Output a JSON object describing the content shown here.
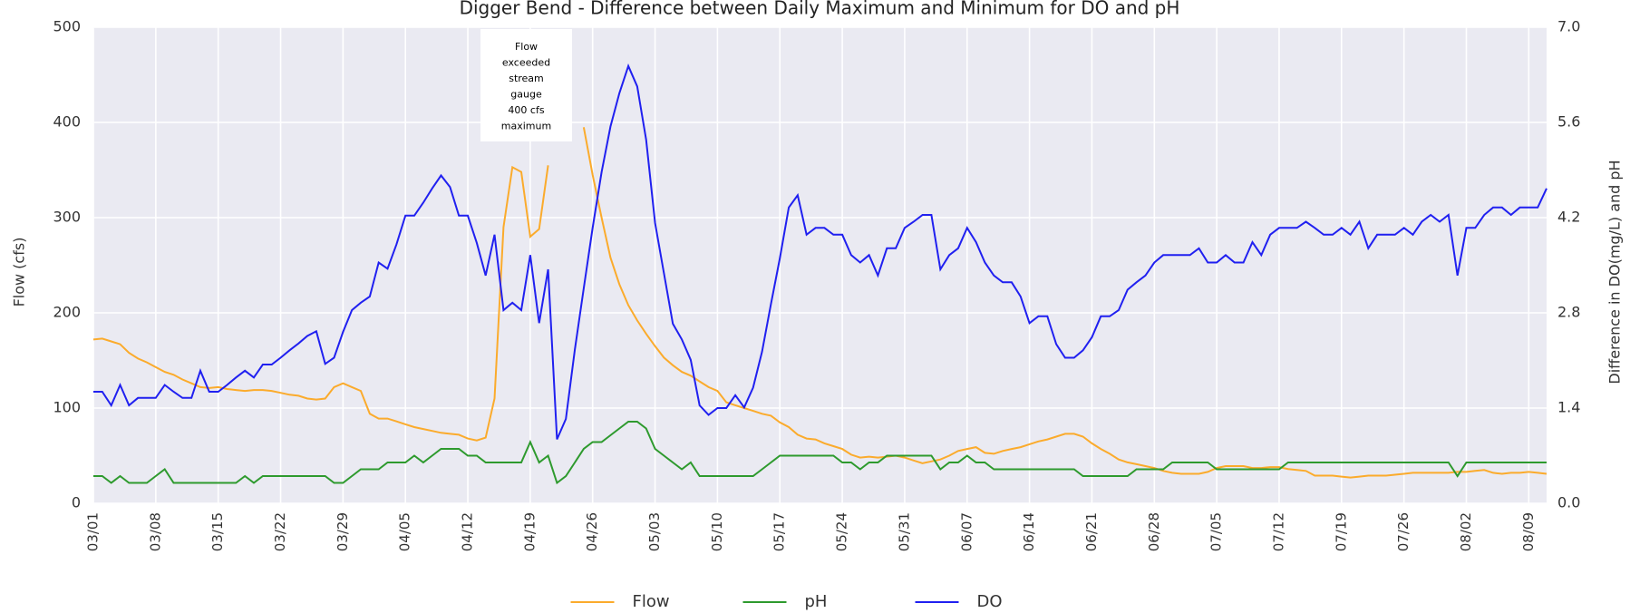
{
  "chart_data": {
    "type": "line",
    "title": "Digger Bend - Difference between Daily Maximum and Minimum for DO and pH",
    "ylabel": "Flow (cfs)",
    "y2label": "Difference in DO(mg/L) and pH",
    "annotation": [
      "Flow",
      "exceeded",
      "stream",
      "gauge",
      "400 cfs",
      "maximum"
    ],
    "categories": [
      "03/01",
      null,
      null,
      null,
      null,
      null,
      null,
      "03/08",
      null,
      null,
      null,
      null,
      null,
      null,
      "03/15",
      null,
      null,
      null,
      null,
      null,
      null,
      "03/22",
      null,
      null,
      null,
      null,
      null,
      null,
      "03/29",
      null,
      null,
      null,
      null,
      null,
      null,
      "04/05",
      null,
      null,
      null,
      null,
      null,
      null,
      "04/12",
      null,
      null,
      null,
      null,
      null,
      null,
      "04/19",
      null,
      null,
      null,
      null,
      null,
      null,
      "04/26",
      null,
      null,
      null,
      null,
      null,
      null,
      "05/03",
      null,
      null,
      null,
      null,
      null,
      null,
      "05/10",
      null,
      null,
      null,
      null,
      null,
      null,
      "05/17",
      null,
      null,
      null,
      null,
      null,
      null,
      "05/24",
      null,
      null,
      null,
      null,
      null,
      null,
      "05/31",
      null,
      null,
      null,
      null,
      null,
      null,
      "06/07",
      null,
      null,
      null,
      null,
      null,
      null,
      "06/14",
      null,
      null,
      null,
      null,
      null,
      null,
      "06/21",
      null,
      null,
      null,
      null,
      null,
      null,
      "06/28",
      null,
      null,
      null,
      null,
      null,
      null,
      "07/05",
      null,
      null,
      null,
      null,
      null,
      null,
      "07/12",
      null,
      null,
      null,
      null,
      null,
      null,
      "07/19",
      null,
      null,
      null,
      null,
      null,
      null,
      "07/26",
      null,
      null,
      null,
      null,
      null,
      null,
      "08/02",
      null,
      null,
      null,
      null,
      null,
      null,
      "08/09",
      null,
      null
    ],
    "series": [
      {
        "name": "Flow",
        "color": "#fbab2c",
        "axis": "y",
        "values": [
          172,
          173,
          170,
          167,
          158,
          152,
          148,
          143,
          138,
          135,
          130,
          126,
          122,
          121,
          122,
          120,
          119,
          118,
          119,
          119,
          118,
          116,
          114,
          113,
          110,
          109,
          110,
          122,
          126,
          122,
          118,
          94,
          89,
          89,
          86,
          83,
          80,
          78,
          76,
          74,
          73,
          72,
          68,
          66,
          69,
          110,
          290,
          353,
          348,
          280,
          288,
          355,
          null,
          null,
          null,
          395,
          345,
          300,
          258,
          230,
          208,
          192,
          178,
          165,
          153,
          145,
          138,
          134,
          128,
          122,
          118,
          106,
          103,
          100,
          97,
          94,
          92,
          85,
          80,
          72,
          68,
          67,
          63,
          60,
          57,
          51,
          48,
          49,
          48,
          49,
          50,
          48,
          45,
          42,
          44,
          46,
          50,
          55,
          57,
          59,
          53,
          52,
          55,
          57,
          59,
          62,
          65,
          67,
          70,
          73,
          73,
          70,
          63,
          57,
          52,
          46,
          43,
          41,
          39,
          37,
          34,
          32,
          31,
          31,
          31,
          33,
          37,
          39,
          39,
          39,
          37,
          37,
          38,
          38,
          36,
          35,
          34,
          29,
          29,
          29,
          28,
          27,
          28,
          29,
          29,
          29,
          30,
          31,
          32,
          32,
          32,
          32,
          32,
          33,
          33,
          34,
          35,
          32,
          31,
          32,
          32,
          33,
          32,
          31
        ]
      },
      {
        "name": "pH",
        "color": "#2e9a2e",
        "axis": "y2",
        "values": [
          0.4,
          0.4,
          0.3,
          0.4,
          0.3,
          0.3,
          0.3,
          0.4,
          0.5,
          0.3,
          0.3,
          0.3,
          0.3,
          0.3,
          0.3,
          0.3,
          0.3,
          0.4,
          0.3,
          0.4,
          0.4,
          0.4,
          0.4,
          0.4,
          0.4,
          0.4,
          0.4,
          0.3,
          0.3,
          0.4,
          0.5,
          0.5,
          0.5,
          0.6,
          0.6,
          0.6,
          0.7,
          0.6,
          0.7,
          0.8,
          0.8,
          0.8,
          0.7,
          0.7,
          0.6,
          0.6,
          0.6,
          0.6,
          0.6,
          0.9,
          0.6,
          0.7,
          0.3,
          0.4,
          0.6,
          0.8,
          0.9,
          0.9,
          1.0,
          1.1,
          1.2,
          1.2,
          1.1,
          0.8,
          0.7,
          0.6,
          0.5,
          0.6,
          0.4,
          0.4,
          0.4,
          0.4,
          0.4,
          0.4,
          0.4,
          0.5,
          0.6,
          0.7,
          0.7,
          0.7,
          0.7,
          0.7,
          0.7,
          0.7,
          0.6,
          0.6,
          0.5,
          0.6,
          0.6,
          0.7,
          0.7,
          0.7,
          0.7,
          0.7,
          0.7,
          0.5,
          0.6,
          0.6,
          0.7,
          0.6,
          0.6,
          0.5,
          0.5,
          0.5,
          0.5,
          0.5,
          0.5,
          0.5,
          0.5,
          0.5,
          0.5,
          0.4,
          0.4,
          0.4,
          0.4,
          0.4,
          0.4,
          0.5,
          0.5,
          0.5,
          0.5,
          0.6,
          0.6,
          0.6,
          0.6,
          0.6,
          0.5,
          0.5,
          0.5,
          0.5,
          0.5,
          0.5,
          0.5,
          0.5,
          0.6,
          0.6,
          0.6,
          0.6,
          0.6,
          0.6,
          0.6,
          0.6,
          0.6,
          0.6,
          0.6,
          0.6,
          0.6,
          0.6,
          0.6,
          0.6,
          0.6,
          0.6,
          0.6,
          0.4,
          0.6,
          0.6,
          0.6,
          0.6,
          0.6,
          0.6,
          0.6,
          0.6,
          0.6,
          0.6
        ]
      },
      {
        "name": "DO",
        "color": "#2020f0",
        "axis": "y2",
        "values": [
          1.64,
          1.64,
          1.44,
          1.74,
          1.44,
          1.55,
          1.55,
          1.55,
          1.74,
          1.64,
          1.55,
          1.55,
          1.95,
          1.64,
          1.64,
          1.74,
          1.85,
          1.95,
          1.85,
          2.04,
          2.04,
          2.14,
          2.25,
          2.35,
          2.46,
          2.53,
          2.05,
          2.14,
          2.52,
          2.84,
          2.95,
          3.04,
          3.54,
          3.45,
          3.81,
          4.23,
          4.23,
          4.42,
          4.63,
          4.82,
          4.65,
          4.23,
          4.23,
          3.83,
          3.35,
          3.95,
          2.84,
          2.95,
          2.84,
          3.65,
          2.65,
          3.44,
          0.94,
          1.24,
          2.26,
          3.16,
          4.05,
          4.87,
          5.54,
          6.03,
          6.43,
          6.13,
          5.35,
          4.12,
          3.38,
          2.64,
          2.41,
          2.11,
          1.44,
          1.3,
          1.4,
          1.4,
          1.59,
          1.41,
          1.7,
          2.23,
          2.93,
          3.6,
          4.35,
          4.53,
          3.95,
          4.05,
          4.05,
          3.95,
          3.95,
          3.65,
          3.54,
          3.65,
          3.35,
          3.75,
          3.75,
          4.05,
          4.14,
          4.24,
          4.24,
          3.44,
          3.65,
          3.75,
          4.05,
          3.84,
          3.54,
          3.35,
          3.25,
          3.25,
          3.04,
          2.65,
          2.75,
          2.75,
          2.34,
          2.14,
          2.14,
          2.25,
          2.44,
          2.75,
          2.75,
          2.84,
          3.14,
          3.25,
          3.35,
          3.54,
          3.65,
          3.65,
          3.65,
          3.65,
          3.75,
          3.54,
          3.54,
          3.65,
          3.54,
          3.54,
          3.84,
          3.65,
          3.95,
          4.05,
          4.05,
          4.05,
          4.14,
          4.05,
          3.95,
          3.95,
          4.05,
          3.95,
          4.14,
          3.75,
          3.95,
          3.95,
          3.95,
          4.05,
          3.95,
          4.14,
          4.24,
          4.14,
          4.24,
          3.35,
          4.05,
          4.05,
          4.24,
          4.35,
          4.35,
          4.24,
          4.35,
          4.35,
          4.35,
          4.63
        ]
      }
    ],
    "ylim": [
      0,
      500
    ],
    "yticks": [
      0,
      100,
      200,
      300,
      400,
      500
    ],
    "y2lim": [
      0,
      7
    ],
    "y2ticks": [
      {
        "value": 0,
        "label": "0.0"
      },
      1.4,
      2.8,
      4.2,
      5.6,
      {
        "value": 7,
        "label": "7.0"
      }
    ],
    "grid": true,
    "legend": "bottom"
  }
}
